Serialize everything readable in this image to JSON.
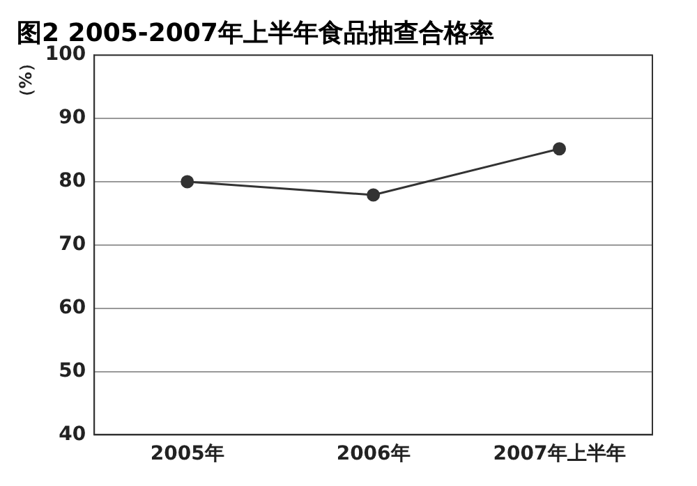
{
  "chart_data": {
    "type": "line",
    "title": "图2 2005-2007年上半年食品抽查合格率",
    "ylabel": "（%）",
    "categories": [
      "2005年",
      "2006年",
      "2007年上半年"
    ],
    "series": [
      {
        "color": "#333333",
        "values": [
          80,
          77.9,
          85.2
        ]
      }
    ],
    "ylim": [
      40,
      100
    ],
    "yticks": [
      40,
      50,
      60,
      70,
      80,
      90,
      100
    ],
    "grid": "y",
    "legend": false,
    "marker": "circle",
    "line_style": "solid"
  }
}
